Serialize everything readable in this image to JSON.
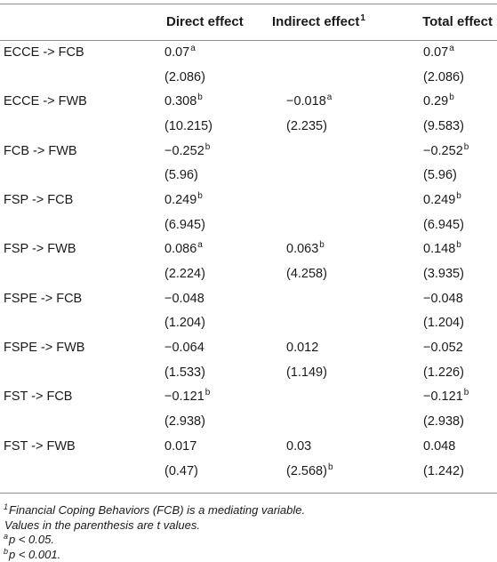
{
  "header": {
    "label": "",
    "direct": "Direct effect",
    "indirect": "Indirect effect",
    "indirect_sup": "1",
    "total": "Total effect"
  },
  "rows": [
    {
      "path": "ECCE -> FCB",
      "direct": {
        "v": "0.07",
        "s": "a"
      },
      "direct_t": {
        "v": "(2.086)",
        "s": ""
      },
      "indirect": {
        "v": "",
        "s": ""
      },
      "indirect_t": {
        "v": "",
        "s": ""
      },
      "total": {
        "v": "0.07",
        "s": "a"
      },
      "total_t": {
        "v": "(2.086)",
        "s": ""
      }
    },
    {
      "path": "ECCE -> FWB",
      "direct": {
        "v": "0.308",
        "s": "b"
      },
      "direct_t": {
        "v": "(10.215)",
        "s": ""
      },
      "indirect": {
        "v": "−0.018",
        "s": "a"
      },
      "indirect_t": {
        "v": "(2.235)",
        "s": ""
      },
      "total": {
        "v": "0.29",
        "s": "b"
      },
      "total_t": {
        "v": "(9.583)",
        "s": ""
      }
    },
    {
      "path": "FCB -> FWB",
      "direct": {
        "v": "−0.252",
        "s": "b"
      },
      "direct_t": {
        "v": "(5.96)",
        "s": ""
      },
      "indirect": {
        "v": "",
        "s": ""
      },
      "indirect_t": {
        "v": "",
        "s": ""
      },
      "total": {
        "v": "−0.252",
        "s": "b"
      },
      "total_t": {
        "v": "(5.96)",
        "s": ""
      }
    },
    {
      "path": "FSP -> FCB",
      "direct": {
        "v": "0.249",
        "s": "b"
      },
      "direct_t": {
        "v": "(6.945)",
        "s": ""
      },
      "indirect": {
        "v": "",
        "s": ""
      },
      "indirect_t": {
        "v": "",
        "s": ""
      },
      "total": {
        "v": "0.249",
        "s": "b"
      },
      "total_t": {
        "v": "(6.945)",
        "s": ""
      }
    },
    {
      "path": "FSP -> FWB",
      "direct": {
        "v": "0.086",
        "s": "a"
      },
      "direct_t": {
        "v": "(2.224)",
        "s": ""
      },
      "indirect": {
        "v": "0.063",
        "s": "b"
      },
      "indirect_t": {
        "v": "(4.258)",
        "s": ""
      },
      "total": {
        "v": "0.148",
        "s": "b"
      },
      "total_t": {
        "v": "(3.935)",
        "s": ""
      }
    },
    {
      "path": "FSPE -> FCB",
      "direct": {
        "v": "−0.048",
        "s": ""
      },
      "direct_t": {
        "v": "(1.204)",
        "s": ""
      },
      "indirect": {
        "v": "",
        "s": ""
      },
      "indirect_t": {
        "v": "",
        "s": ""
      },
      "total": {
        "v": "−0.048",
        "s": ""
      },
      "total_t": {
        "v": "(1.204)",
        "s": ""
      }
    },
    {
      "path": "FSPE -> FWB",
      "direct": {
        "v": "−0.064",
        "s": ""
      },
      "direct_t": {
        "v": "(1.533)",
        "s": ""
      },
      "indirect": {
        "v": "0.012",
        "s": ""
      },
      "indirect_t": {
        "v": "(1.149)",
        "s": ""
      },
      "total": {
        "v": "−0.052",
        "s": ""
      },
      "total_t": {
        "v": "(1.226)",
        "s": ""
      }
    },
    {
      "path": "FST -> FCB",
      "direct": {
        "v": "−0.121",
        "s": "b"
      },
      "direct_t": {
        "v": "(2.938)",
        "s": ""
      },
      "indirect": {
        "v": "",
        "s": ""
      },
      "indirect_t": {
        "v": "",
        "s": ""
      },
      "total": {
        "v": "−0.121",
        "s": "b"
      },
      "total_t": {
        "v": "(2.938)",
        "s": ""
      }
    },
    {
      "path": "FST -> FWB",
      "direct": {
        "v": "0.017",
        "s": ""
      },
      "direct_t": {
        "v": "(0.47)",
        "s": ""
      },
      "indirect": {
        "v": "0.03",
        "s": ""
      },
      "indirect_t": {
        "v": "(2.568)",
        "s": "b"
      },
      "total": {
        "v": "0.048",
        "s": ""
      },
      "total_t": {
        "v": "(1.242)",
        "s": ""
      }
    }
  ],
  "notes": [
    {
      "sup": "1",
      "text": "Financial Coping Behaviors (FCB) is a mediating variable."
    },
    {
      "sup": "",
      "text": "Values in the parenthesis are t values."
    },
    {
      "sup": "a",
      "text": "p < 0.05."
    },
    {
      "sup": "b",
      "text": "p < 0.001."
    }
  ]
}
